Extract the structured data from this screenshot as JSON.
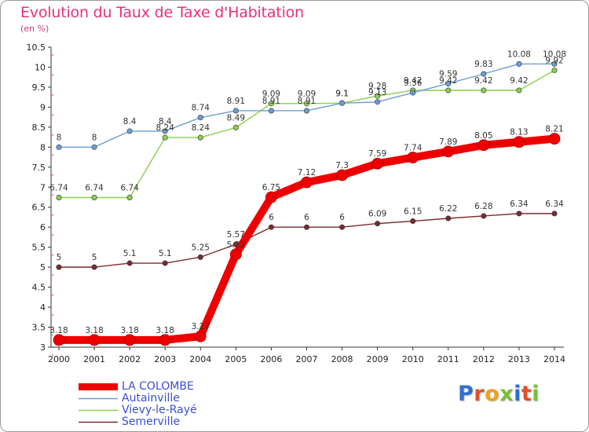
{
  "title": "Evolution du Taux de Taxe d'Habitation",
  "unit": "(en %)",
  "brand": "Proxiti",
  "chart_data": {
    "type": "line",
    "title": "Evolution du Taux de Taxe d'Habitation",
    "ylabel": "(en %)",
    "xlabel": "",
    "ylim": [
      3,
      10.5
    ],
    "yticks": [
      "3",
      "3.5",
      "4",
      "4.5",
      "5",
      "5.5",
      "6",
      "6.5",
      "7",
      "7.5",
      "8",
      "8.5",
      "9",
      "9.5",
      "10",
      "10.5"
    ],
    "x": [
      "2000",
      "2001",
      "2002",
      "2003",
      "2004",
      "2005",
      "2006",
      "2007",
      "2008",
      "2009",
      "2010",
      "2011",
      "2012",
      "2013",
      "2014"
    ],
    "grid": false,
    "legend_position": "bottom-left",
    "series": [
      {
        "name": "LA COLOMBE",
        "color": "#ee0000",
        "values": [
          3.18,
          3.18,
          3.18,
          3.18,
          3.27,
          5.32,
          6.75,
          7.12,
          7.3,
          7.59,
          7.74,
          7.89,
          8.05,
          8.13,
          8.21
        ],
        "labels": [
          "3.18",
          "3.18",
          "3.18",
          "3.18",
          "3.27",
          "5.32",
          "6.75",
          "7.12",
          "7.3",
          "7.59",
          "7.74",
          "7.89",
          "8.05",
          "8.13",
          "8.21"
        ]
      },
      {
        "name": "Autainville",
        "color": "#6a9ed6",
        "values": [
          8,
          8,
          8.4,
          8.4,
          8.74,
          8.91,
          8.91,
          8.91,
          9.1,
          9.13,
          9.36,
          9.59,
          9.83,
          10.08,
          10.08
        ],
        "labels": [
          "8",
          "8",
          "8.4",
          "8.4",
          "8.74",
          "8.91",
          "8.91",
          "8.91",
          "9.1",
          "9.13",
          "9.36",
          "9.59",
          "9.83",
          "10.08",
          "10.08"
        ]
      },
      {
        "name": "Vievy-le-Rayé",
        "color": "#8ccf4f",
        "values": [
          6.74,
          6.74,
          6.74,
          8.24,
          8.24,
          8.49,
          9.09,
          9.09,
          9.1,
          9.28,
          9.42,
          9.42,
          9.42,
          9.42,
          9.92
        ],
        "labels": [
          "6.74",
          "6.74",
          "6.74",
          "8.24",
          "8.24",
          "8.49",
          "9.09",
          "9.09",
          "9.1",
          "9.28",
          "9.42",
          "9.42",
          "9.42",
          "9.42",
          "9.92"
        ]
      },
      {
        "name": "Semerville",
        "color": "#7a2a2e",
        "values": [
          5,
          5,
          5.1,
          5.1,
          5.25,
          5.57,
          6,
          6,
          6,
          6.09,
          6.15,
          6.22,
          6.28,
          6.34,
          6.34
        ],
        "labels": [
          "5",
          "5",
          "5.1",
          "5.1",
          "5.25",
          "5.57",
          "6",
          "6",
          "6",
          "6.09",
          "6.15",
          "6.22",
          "6.28",
          "6.34",
          "6.34"
        ]
      }
    ]
  }
}
